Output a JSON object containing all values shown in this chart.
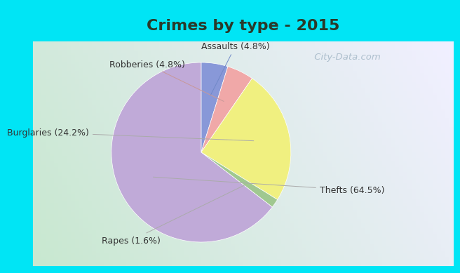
{
  "title": "Crimes by type - 2015",
  "slices": [
    {
      "label": "Thefts (64.5%)",
      "value": 64.5,
      "color": "#c0aad8"
    },
    {
      "label": "Burglaries (24.2%)",
      "value": 24.2,
      "color": "#f0f080"
    },
    {
      "label": "Robberies (4.8%)",
      "value": 4.8,
      "color": "#f0a8a8"
    },
    {
      "label": "Assaults (4.8%)",
      "value": 4.8,
      "color": "#8898d8"
    },
    {
      "label": "Rapes (1.6%)",
      "value": 1.6,
      "color": "#a0c890"
    }
  ],
  "background_top": "#00e5f5",
  "background_main_left": "#c8e8d0",
  "background_main_right": "#e8eef5",
  "title_fontsize": 16,
  "label_fontsize": 9,
  "watermark": " City-Data.com"
}
